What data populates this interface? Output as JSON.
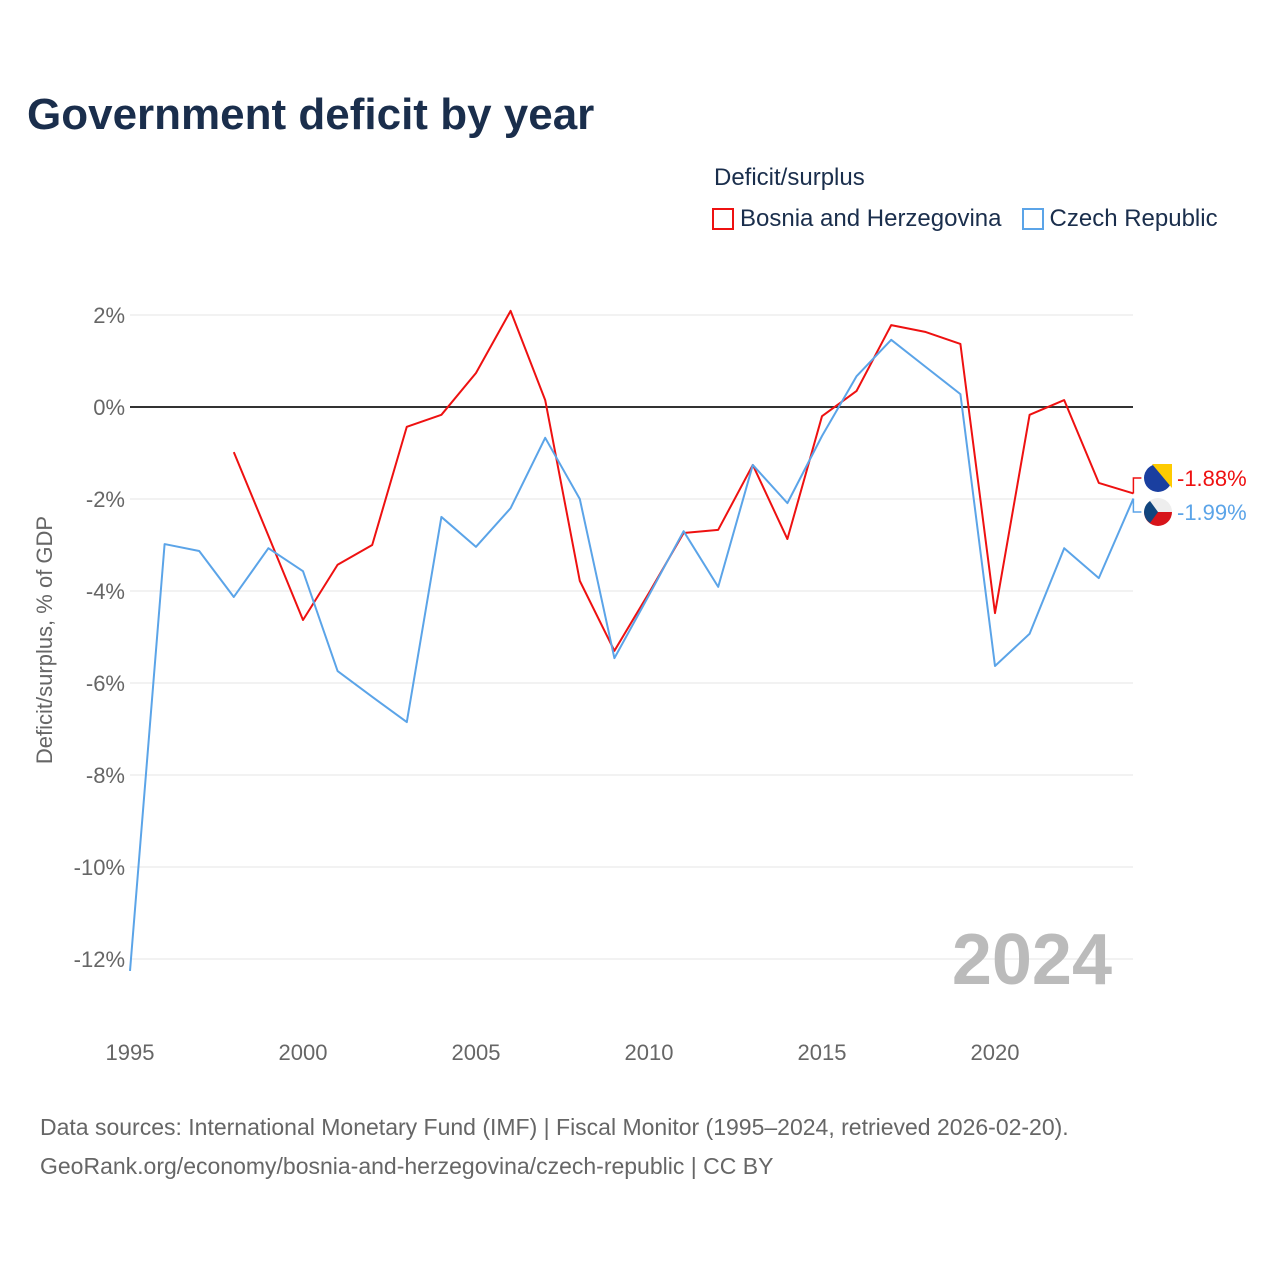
{
  "title": "Government deficit by year",
  "legend_title": "Deficit/surplus",
  "source_line1": "Data sources: International Monetary Fund (IMF) | Fiscal Monitor (1995–2024, retrieved 2026-02-20).",
  "source_line2": "GeoRank.org/economy/bosnia-and-herzegovina/czech-republic | CC BY",
  "chart_data": {
    "type": "line",
    "title": "Government deficit by year",
    "xlabel": "",
    "ylabel": "Deficit/surplus, % of GDP",
    "xlim": [
      1995,
      2024
    ],
    "ylim": [
      -13,
      2.5
    ],
    "yticks": [
      "2%",
      "0%",
      "-2%",
      "-4%",
      "-6%",
      "-8%",
      "-10%",
      "-12%"
    ],
    "ytick_values": [
      2,
      0,
      -2,
      -4,
      -6,
      -8,
      -10,
      -12
    ],
    "xticks": [
      "1995",
      "2000",
      "2005",
      "2010",
      "2015",
      "2020"
    ],
    "xtick_values": [
      1995,
      2000,
      2005,
      2010,
      2015,
      2020
    ],
    "year_watermark": "2024",
    "legend_position": "top-right",
    "series": [
      {
        "name": "Bosnia and Herzegovina",
        "color": "#ee1111",
        "end_label": "-1.88%",
        "x": [
          1998,
          1999,
          2000,
          2001,
          2002,
          2003,
          2004,
          2005,
          2006,
          2007,
          2008,
          2009,
          2010,
          2011,
          2012,
          2013,
          2014,
          2015,
          2016,
          2017,
          2018,
          2019,
          2020,
          2021,
          2022,
          2023,
          2024
        ],
        "values": [
          -0.98,
          -2.8,
          -4.63,
          -3.43,
          -3.0,
          -0.43,
          -0.17,
          0.74,
          2.09,
          0.15,
          -3.78,
          -5.3,
          -4.04,
          -2.74,
          -2.67,
          -1.26,
          -2.87,
          -0.2,
          0.35,
          1.78,
          1.63,
          1.37,
          -4.48,
          -0.17,
          0.15,
          -1.65,
          -1.88
        ]
      },
      {
        "name": "Czech Republic",
        "color": "#5ba4e8",
        "end_label": "-1.99%",
        "x": [
          1995,
          1996,
          1997,
          1998,
          1999,
          2000,
          2001,
          2002,
          2003,
          2004,
          2005,
          2006,
          2007,
          2008,
          2009,
          2010,
          2011,
          2012,
          2013,
          2014,
          2015,
          2016,
          2017,
          2018,
          2019,
          2020,
          2021,
          2022,
          2023,
          2024
        ],
        "values": [
          -12.26,
          -2.98,
          -3.13,
          -4.13,
          -3.07,
          -3.57,
          -5.74,
          -6.3,
          -6.85,
          -2.39,
          -3.04,
          -2.2,
          -0.67,
          -2.0,
          -5.46,
          -4.09,
          -2.7,
          -3.91,
          -1.26,
          -2.09,
          -0.63,
          0.67,
          1.46,
          0.87,
          0.28,
          -5.63,
          -4.93,
          -3.07,
          -3.72,
          -1.99
        ]
      }
    ]
  }
}
